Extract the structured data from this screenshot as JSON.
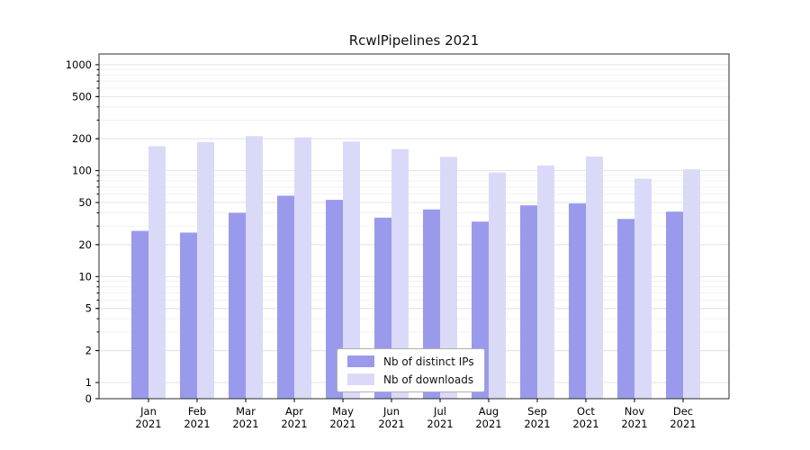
{
  "chart_data": {
    "type": "bar",
    "title": "RcwlPipelines 2021",
    "categories": [
      "Jan 2021",
      "Feb 2021",
      "Mar 2021",
      "Apr 2021",
      "May 2021",
      "Jun 2021",
      "Jul 2021",
      "Aug 2021",
      "Sep 2021",
      "Oct 2021",
      "Nov 2021",
      "Dec 2021"
    ],
    "series": [
      {
        "name": "Nb of distinct IPs",
        "color": "#9a9aec",
        "values": [
          27,
          26,
          40,
          58,
          53,
          36,
          43,
          33,
          47,
          49,
          35,
          41
        ]
      },
      {
        "name": "Nb of downloads",
        "color": "#dadaf8",
        "values": [
          170,
          186,
          212,
          206,
          188,
          160,
          135,
          96,
          112,
          136,
          84,
          103
        ]
      }
    ],
    "yscale": "symlog",
    "ylim": [
      0,
      1000
    ],
    "yticks": [
      0,
      1,
      2,
      5,
      10,
      20,
      50,
      100,
      200,
      500,
      1000
    ],
    "xlabel": "",
    "ylabel": "",
    "grid": true,
    "legend_position": "lower center"
  }
}
